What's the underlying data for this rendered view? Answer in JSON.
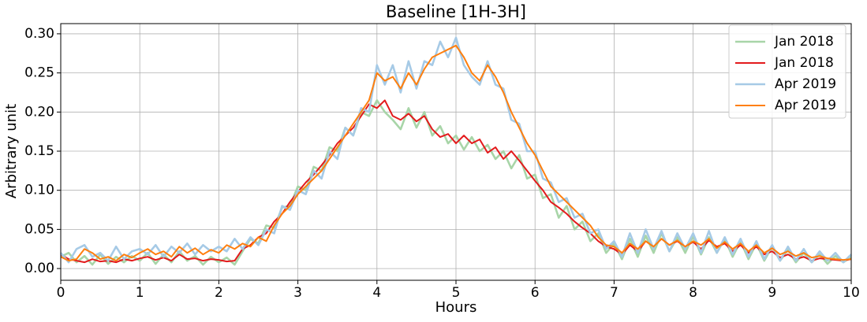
{
  "chart_data": {
    "type": "line",
    "title": "Baseline [1H-3H]",
    "xlabel": "Hours",
    "ylabel": "Arbitrary unit",
    "x": [
      0,
      0.1,
      0.2,
      0.3,
      0.4,
      0.5,
      0.6,
      0.7,
      0.8,
      0.9,
      1,
      1.1,
      1.2,
      1.3,
      1.4,
      1.5,
      1.6,
      1.7,
      1.8,
      1.9,
      2,
      2.1,
      2.2,
      2.3,
      2.4,
      2.5,
      2.6,
      2.7,
      2.8,
      2.9,
      3,
      3.1,
      3.2,
      3.3,
      3.4,
      3.5,
      3.6,
      3.7,
      3.8,
      3.9,
      4,
      4.1,
      4.2,
      4.3,
      4.4,
      4.5,
      4.6,
      4.7,
      4.8,
      4.9,
      5,
      5.1,
      5.2,
      5.3,
      5.4,
      5.5,
      5.6,
      5.7,
      5.8,
      5.9,
      6,
      6.1,
      6.2,
      6.3,
      6.4,
      6.5,
      6.6,
      6.7,
      6.8,
      6.9,
      7,
      7.1,
      7.2,
      7.3,
      7.4,
      7.5,
      7.6,
      7.7,
      7.8,
      7.9,
      8,
      8.1,
      8.2,
      8.3,
      8.4,
      8.5,
      8.6,
      8.7,
      8.8,
      8.9,
      9,
      9.1,
      9.2,
      9.3,
      9.4,
      9.5,
      9.6,
      9.7,
      9.8,
      9.9,
      10
    ],
    "series": [
      {
        "name": "Jan 2018",
        "color": "#a8d5a8",
        "width": 2.6,
        "values": [
          0.015,
          0.02,
          0.008,
          0.016,
          0.005,
          0.018,
          0.006,
          0.015,
          0.008,
          0.016,
          0.01,
          0.02,
          0.006,
          0.018,
          0.008,
          0.022,
          0.01,
          0.016,
          0.005,
          0.015,
          0.008,
          0.014,
          0.005,
          0.022,
          0.038,
          0.032,
          0.055,
          0.052,
          0.078,
          0.08,
          0.105,
          0.1,
          0.13,
          0.125,
          0.155,
          0.15,
          0.18,
          0.17,
          0.2,
          0.195,
          0.215,
          0.2,
          0.19,
          0.178,
          0.205,
          0.18,
          0.2,
          0.17,
          0.182,
          0.16,
          0.17,
          0.152,
          0.168,
          0.15,
          0.158,
          0.14,
          0.15,
          0.128,
          0.145,
          0.115,
          0.12,
          0.09,
          0.095,
          0.065,
          0.08,
          0.05,
          0.06,
          0.035,
          0.045,
          0.02,
          0.032,
          0.012,
          0.038,
          0.015,
          0.042,
          0.02,
          0.045,
          0.022,
          0.04,
          0.02,
          0.042,
          0.018,
          0.04,
          0.02,
          0.038,
          0.015,
          0.035,
          0.012,
          0.032,
          0.01,
          0.028,
          0.01,
          0.024,
          0.008,
          0.02,
          0.008,
          0.018,
          0.006,
          0.016,
          0.008,
          0.015
        ]
      },
      {
        "name": "Jan 2018",
        "color": "#e31a1c",
        "width": 2,
        "values": [
          0.018,
          0.012,
          0.01,
          0.008,
          0.012,
          0.009,
          0.01,
          0.008,
          0.012,
          0.01,
          0.013,
          0.015,
          0.011,
          0.014,
          0.01,
          0.018,
          0.012,
          0.013,
          0.01,
          0.012,
          0.011,
          0.009,
          0.01,
          0.025,
          0.03,
          0.04,
          0.045,
          0.06,
          0.07,
          0.085,
          0.098,
          0.11,
          0.12,
          0.132,
          0.145,
          0.16,
          0.17,
          0.18,
          0.195,
          0.21,
          0.205,
          0.215,
          0.195,
          0.19,
          0.198,
          0.188,
          0.195,
          0.178,
          0.168,
          0.172,
          0.16,
          0.17,
          0.16,
          0.165,
          0.148,
          0.155,
          0.14,
          0.15,
          0.138,
          0.125,
          0.112,
          0.1,
          0.085,
          0.078,
          0.07,
          0.06,
          0.052,
          0.045,
          0.035,
          0.028,
          0.025,
          0.018,
          0.03,
          0.022,
          0.035,
          0.028,
          0.038,
          0.03,
          0.035,
          0.028,
          0.034,
          0.025,
          0.036,
          0.028,
          0.032,
          0.022,
          0.03,
          0.02,
          0.028,
          0.018,
          0.022,
          0.014,
          0.018,
          0.012,
          0.015,
          0.01,
          0.013,
          0.012,
          0.011,
          0.01,
          0.012
        ]
      },
      {
        "name": "Apr 2019",
        "color": "#a6cae6",
        "width": 2.6,
        "values": [
          0.02,
          0.008,
          0.025,
          0.03,
          0.015,
          0.02,
          0.01,
          0.028,
          0.012,
          0.022,
          0.025,
          0.018,
          0.03,
          0.015,
          0.028,
          0.02,
          0.032,
          0.018,
          0.03,
          0.022,
          0.028,
          0.022,
          0.038,
          0.025,
          0.04,
          0.03,
          0.05,
          0.045,
          0.08,
          0.075,
          0.1,
          0.095,
          0.125,
          0.115,
          0.15,
          0.14,
          0.18,
          0.17,
          0.205,
          0.2,
          0.26,
          0.235,
          0.26,
          0.225,
          0.265,
          0.23,
          0.265,
          0.26,
          0.29,
          0.27,
          0.295,
          0.26,
          0.245,
          0.235,
          0.265,
          0.235,
          0.23,
          0.19,
          0.185,
          0.15,
          0.15,
          0.115,
          0.11,
          0.085,
          0.09,
          0.065,
          0.07,
          0.045,
          0.05,
          0.025,
          0.035,
          0.015,
          0.045,
          0.02,
          0.05,
          0.025,
          0.048,
          0.022,
          0.045,
          0.025,
          0.045,
          0.02,
          0.048,
          0.02,
          0.04,
          0.018,
          0.038,
          0.015,
          0.035,
          0.012,
          0.03,
          0.01,
          0.028,
          0.01,
          0.025,
          0.008,
          0.022,
          0.01,
          0.02,
          0.008,
          0.018
        ]
      },
      {
        "name": "Apr 2019",
        "color": "#ff7f0e",
        "width": 2,
        "values": [
          0.015,
          0.01,
          0.012,
          0.025,
          0.02,
          0.012,
          0.015,
          0.01,
          0.018,
          0.014,
          0.02,
          0.025,
          0.018,
          0.022,
          0.015,
          0.028,
          0.02,
          0.026,
          0.018,
          0.024,
          0.02,
          0.03,
          0.025,
          0.032,
          0.028,
          0.04,
          0.035,
          0.055,
          0.07,
          0.08,
          0.095,
          0.105,
          0.115,
          0.125,
          0.14,
          0.155,
          0.17,
          0.185,
          0.2,
          0.215,
          0.25,
          0.24,
          0.245,
          0.23,
          0.25,
          0.235,
          0.255,
          0.27,
          0.275,
          0.28,
          0.285,
          0.27,
          0.25,
          0.24,
          0.26,
          0.245,
          0.225,
          0.2,
          0.18,
          0.16,
          0.145,
          0.125,
          0.105,
          0.095,
          0.085,
          0.075,
          0.065,
          0.055,
          0.04,
          0.03,
          0.028,
          0.02,
          0.032,
          0.025,
          0.035,
          0.028,
          0.038,
          0.03,
          0.036,
          0.028,
          0.035,
          0.03,
          0.038,
          0.026,
          0.034,
          0.025,
          0.032,
          0.022,
          0.03,
          0.02,
          0.026,
          0.018,
          0.022,
          0.016,
          0.02,
          0.014,
          0.016,
          0.013,
          0.012,
          0.011,
          0.012
        ]
      }
    ],
    "xlim": [
      0,
      10
    ],
    "xticks": [
      0,
      1,
      2,
      3,
      4,
      5,
      6,
      7,
      8,
      9,
      10
    ],
    "ylim": [
      -0.015,
      0.313
    ],
    "yticks": [
      {
        "value": 0,
        "label": "0.00"
      },
      {
        "value": 0.05,
        "label": "0.05"
      },
      {
        "value": 0.1,
        "label": "0.10"
      },
      {
        "value": 0.15,
        "label": "0.15"
      },
      {
        "value": 0.2,
        "label": "0.20"
      },
      {
        "value": 0.25,
        "label": "0.25"
      },
      {
        "value": 0.3,
        "label": "0.30"
      }
    ],
    "grid": true,
    "legend": "upper-right"
  }
}
